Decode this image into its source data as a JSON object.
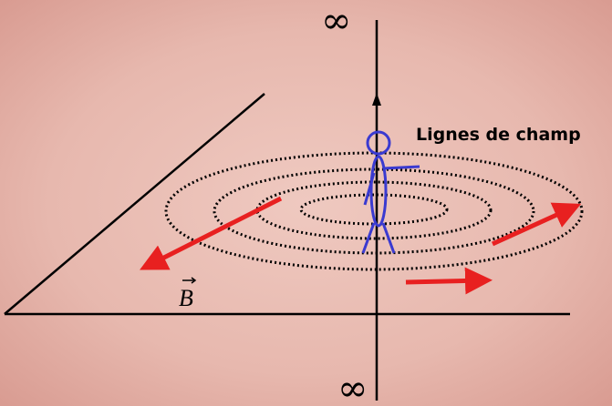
{
  "labels": {
    "infinity_top": "∞",
    "infinity_bottom": "∞",
    "field_lines": "Lignes de champ",
    "field_vector": "B"
  }
}
